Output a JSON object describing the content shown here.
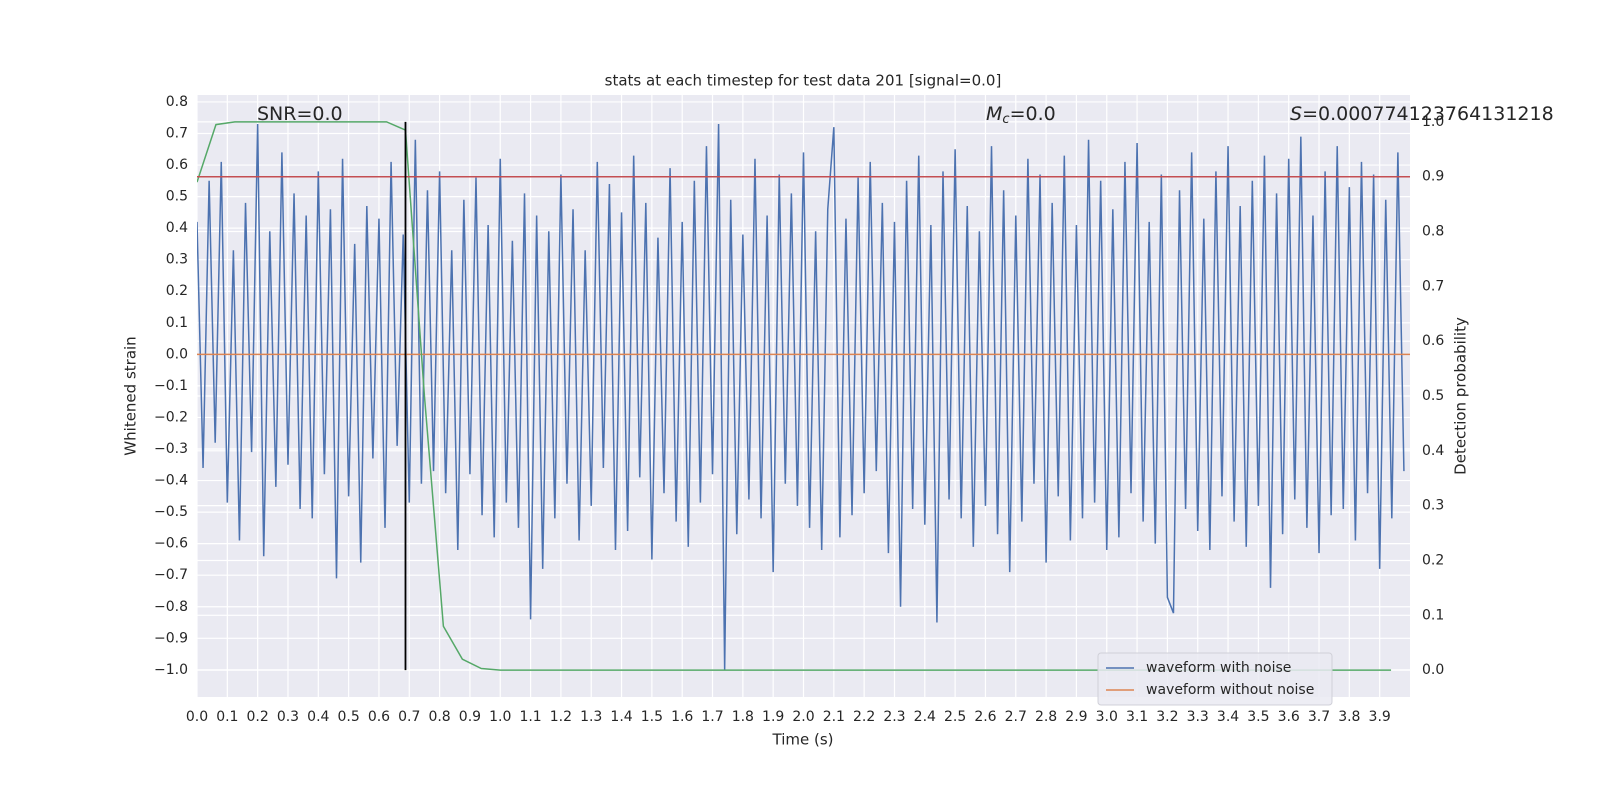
{
  "chart_data": {
    "type": "line",
    "title": "stats at each timestep for test data 201 [signal=0.0]",
    "xlabel": "Time (s)",
    "ylabel": "Whitened strain",
    "y2label": "Detection probability",
    "annotations": [
      {
        "text": "SNR=0.0"
      },
      {
        "symbol": "M",
        "subscript": "c",
        "text": "=0.0"
      },
      {
        "symbol": "S",
        "text": "=0.000774123764131218"
      }
    ],
    "xlim": [
      0,
      4.0
    ],
    "ylim": [
      -1.086,
      0.822
    ],
    "y2lim": [
      -0.049,
      1.049
    ],
    "xticks": [
      {
        "value": 0,
        "label": "0.0"
      },
      {
        "value": 0.1,
        "label": "0.1"
      },
      {
        "value": 0.2,
        "label": "0.2"
      },
      {
        "value": 0.3,
        "label": "0.3"
      },
      {
        "value": 0.4,
        "label": "0.4"
      },
      {
        "value": 0.5,
        "label": "0.5"
      },
      {
        "value": 0.6,
        "label": "0.6"
      },
      {
        "value": 0.7,
        "label": "0.7"
      },
      {
        "value": 0.8,
        "label": "0.8"
      },
      {
        "value": 0.9,
        "label": "0.9"
      },
      {
        "value": 1,
        "label": "1.0"
      },
      {
        "value": 1.1,
        "label": "1.1"
      },
      {
        "value": 1.2,
        "label": "1.2"
      },
      {
        "value": 1.3,
        "label": "1.3"
      },
      {
        "value": 1.4,
        "label": "1.4"
      },
      {
        "value": 1.5,
        "label": "1.5"
      },
      {
        "value": 1.6,
        "label": "1.6"
      },
      {
        "value": 1.7,
        "label": "1.7"
      },
      {
        "value": 1.8,
        "label": "1.8"
      },
      {
        "value": 1.9,
        "label": "1.9"
      },
      {
        "value": 2,
        "label": "2.0"
      },
      {
        "value": 2.1,
        "label": "2.1"
      },
      {
        "value": 2.2,
        "label": "2.2"
      },
      {
        "value": 2.3,
        "label": "2.3"
      },
      {
        "value": 2.4,
        "label": "2.4"
      },
      {
        "value": 2.5,
        "label": "2.5"
      },
      {
        "value": 2.6,
        "label": "2.6"
      },
      {
        "value": 2.7,
        "label": "2.7"
      },
      {
        "value": 2.8,
        "label": "2.8"
      },
      {
        "value": 2.9,
        "label": "2.9"
      },
      {
        "value": 3,
        "label": "3.0"
      },
      {
        "value": 3.1,
        "label": "3.1"
      },
      {
        "value": 3.2,
        "label": "3.2"
      },
      {
        "value": 3.3,
        "label": "3.3"
      },
      {
        "value": 3.4,
        "label": "3.4"
      },
      {
        "value": 3.5,
        "label": "3.5"
      },
      {
        "value": 3.6,
        "label": "3.6"
      },
      {
        "value": 3.7,
        "label": "3.7"
      },
      {
        "value": 3.8,
        "label": "3.8"
      },
      {
        "value": 3.9,
        "label": "3.9"
      }
    ],
    "yticks": [
      {
        "value": 0.8,
        "label": "0.8"
      },
      {
        "value": 0.7,
        "label": "0.7"
      },
      {
        "value": 0.6,
        "label": "0.6"
      },
      {
        "value": 0.5,
        "label": "0.5"
      },
      {
        "value": 0.4,
        "label": "0.4"
      },
      {
        "value": 0.3,
        "label": "0.3"
      },
      {
        "value": 0.2,
        "label": "0.2"
      },
      {
        "value": 0.1,
        "label": "0.1"
      },
      {
        "value": 0,
        "label": "0.0"
      },
      {
        "value": -0.1,
        "label": "−0.1"
      },
      {
        "value": -0.2,
        "label": "−0.2"
      },
      {
        "value": -0.3,
        "label": "−0.3"
      },
      {
        "value": -0.4,
        "label": "−0.4"
      },
      {
        "value": -0.5,
        "label": "−0.5"
      },
      {
        "value": -0.6,
        "label": "−0.6"
      },
      {
        "value": -0.7,
        "label": "−0.7"
      },
      {
        "value": -0.8,
        "label": "−0.8"
      },
      {
        "value": -0.9,
        "label": "−0.9"
      },
      {
        "value": -1,
        "label": "−1.0"
      }
    ],
    "y2ticks": [
      {
        "value": 0,
        "label": "0.0"
      },
      {
        "value": 0.1,
        "label": "0.1"
      },
      {
        "value": 0.2,
        "label": "0.2"
      },
      {
        "value": 0.3,
        "label": "0.3"
      },
      {
        "value": 0.4,
        "label": "0.4"
      },
      {
        "value": 0.5,
        "label": "0.5"
      },
      {
        "value": 0.6,
        "label": "0.6"
      },
      {
        "value": 0.7,
        "label": "0.7"
      },
      {
        "value": 0.8,
        "label": "0.8"
      },
      {
        "value": 0.9,
        "label": "0.9"
      },
      {
        "value": 1,
        "label": "1.0"
      }
    ],
    "grid": true,
    "legend": "lower right",
    "series": [
      {
        "name": "waveform with noise",
        "color": "#4c72b0",
        "x": [
          0,
          0.02,
          0.04,
          0.06,
          0.08,
          0.1,
          0.12,
          0.14,
          0.16,
          0.18,
          0.2,
          0.22,
          0.24,
          0.26,
          0.28,
          0.3,
          0.32,
          0.34,
          0.36,
          0.38,
          0.4,
          0.42,
          0.44,
          0.46,
          0.48,
          0.5,
          0.52,
          0.54,
          0.56,
          0.58,
          0.6,
          0.62,
          0.64,
          0.66,
          0.68,
          0.7,
          0.72,
          0.74,
          0.76,
          0.78,
          0.8,
          0.82,
          0.84,
          0.86,
          0.88,
          0.9,
          0.92,
          0.94,
          0.96,
          0.98,
          1,
          1.02,
          1.04,
          1.06,
          1.08,
          1.1,
          1.12,
          1.14,
          1.16,
          1.18,
          1.2,
          1.22,
          1.24,
          1.26,
          1.28,
          1.3,
          1.32,
          1.34,
          1.36,
          1.38,
          1.4,
          1.42,
          1.44,
          1.46,
          1.48,
          1.5,
          1.52,
          1.54,
          1.56,
          1.58,
          1.6,
          1.62,
          1.64,
          1.66,
          1.68,
          1.7,
          1.72,
          1.74,
          1.76,
          1.78,
          1.8,
          1.82,
          1.84,
          1.86,
          1.88,
          1.9,
          1.92,
          1.94,
          1.96,
          1.98,
          2,
          2.02,
          2.04,
          2.06,
          2.08,
          2.1,
          2.12,
          2.14,
          2.16,
          2.18,
          2.2,
          2.22,
          2.24,
          2.26,
          2.28,
          2.3,
          2.32,
          2.34,
          2.36,
          2.38,
          2.4,
          2.42,
          2.44,
          2.46,
          2.48,
          2.5,
          2.52,
          2.54,
          2.56,
          2.58,
          2.6,
          2.62,
          2.64,
          2.66,
          2.68,
          2.7,
          2.72,
          2.74,
          2.76,
          2.78,
          2.8,
          2.82,
          2.84,
          2.86,
          2.88,
          2.9,
          2.92,
          2.94,
          2.96,
          2.98,
          3,
          3.02,
          3.04,
          3.06,
          3.08,
          3.1,
          3.12,
          3.14,
          3.16,
          3.18,
          3.2,
          3.22,
          3.24,
          3.26,
          3.28,
          3.3,
          3.32,
          3.34,
          3.36,
          3.38,
          3.4,
          3.42,
          3.44,
          3.46,
          3.48,
          3.5,
          3.52,
          3.54,
          3.56,
          3.58,
          3.6,
          3.62,
          3.64,
          3.66,
          3.68,
          3.7,
          3.72,
          3.74,
          3.76,
          3.78,
          3.8,
          3.82,
          3.84,
          3.86,
          3.88,
          3.9,
          3.92,
          3.94,
          3.96,
          3.98
        ],
        "values": [
          0.42,
          -0.36,
          0.55,
          -0.28,
          0.61,
          -0.47,
          0.33,
          -0.59,
          0.48,
          -0.31,
          0.73,
          -0.64,
          0.39,
          -0.42,
          0.64,
          -0.35,
          0.51,
          -0.49,
          0.44,
          -0.52,
          0.58,
          -0.38,
          0.46,
          -0.71,
          0.62,
          -0.45,
          0.35,
          -0.66,
          0.47,
          -0.33,
          0.43,
          -0.55,
          0.61,
          -0.29,
          0.38,
          -0.47,
          0.68,
          -0.41,
          0.52,
          -0.37,
          0.58,
          -0.44,
          0.33,
          -0.62,
          0.49,
          -0.38,
          0.56,
          -0.51,
          0.41,
          -0.58,
          0.62,
          -0.47,
          0.36,
          -0.55,
          0.51,
          -0.84,
          0.44,
          -0.68,
          0.39,
          -0.52,
          0.57,
          -0.41,
          0.46,
          -0.59,
          0.33,
          -0.48,
          0.61,
          -0.36,
          0.54,
          -0.62,
          0.45,
          -0.56,
          0.63,
          -0.39,
          0.48,
          -0.65,
          0.37,
          -0.44,
          0.59,
          -0.53,
          0.42,
          -0.61,
          0.55,
          -0.47,
          0.66,
          -0.38,
          0.73,
          -1.0,
          0.49,
          -0.57,
          0.38,
          -0.46,
          0.62,
          -0.52,
          0.44,
          -0.69,
          0.57,
          -0.41,
          0.51,
          -0.48,
          0.64,
          -0.55,
          0.39,
          -0.62,
          0.46,
          0.72,
          -0.58,
          0.43,
          -0.51,
          0.56,
          -0.44,
          0.61,
          -0.37,
          0.48,
          -0.63,
          0.42,
          -0.8,
          0.55,
          -0.49,
          0.63,
          -0.54,
          0.41,
          -0.85,
          0.58,
          -0.46,
          0.65,
          -0.52,
          0.47,
          -0.61,
          0.39,
          -0.48,
          0.66,
          -0.57,
          0.52,
          -0.69,
          0.44,
          -0.53,
          0.62,
          -0.41,
          0.57,
          -0.66,
          0.48,
          -0.45,
          0.63,
          -0.59,
          0.41,
          -0.52,
          0.68,
          -0.47,
          0.55,
          -0.62,
          0.46,
          -0.58,
          0.61,
          -0.44,
          0.67,
          -0.53,
          0.42,
          -0.6,
          0.57,
          -0.77,
          -0.82,
          0.52,
          -0.49,
          0.64,
          -0.56,
          0.43,
          -0.62,
          0.58,
          -0.45,
          0.66,
          -0.53,
          0.47,
          -0.61,
          0.55,
          -0.48,
          0.63,
          -0.74,
          0.51,
          -0.57,
          0.62,
          -0.46,
          0.69,
          -0.55,
          0.44,
          -0.63,
          0.58,
          -0.51,
          0.66,
          -0.49,
          0.53,
          -0.59,
          0.61,
          -0.44,
          0.57,
          -0.68,
          0.49,
          -0.52,
          0.64,
          -0.37
        ]
      },
      {
        "name": "waveform without noise",
        "color": "#dd8452",
        "x": [
          0,
          4.0
        ],
        "values": [
          0,
          0
        ]
      },
      {
        "color": "#55a868",
        "axis": "y2",
        "x": [
          0,
          0.0625,
          0.125,
          0.1875,
          0.25,
          0.3125,
          0.375,
          0.4375,
          0.5,
          0.5625,
          0.625,
          0.6875,
          0.75,
          0.8125,
          0.875,
          0.9375,
          1,
          1.0625,
          1.125,
          1.1875,
          1.25,
          1.3125,
          1.375,
          1.4375,
          1.5,
          1.5625,
          1.625,
          1.6875,
          1.75,
          1.8125,
          1.875,
          1.9375,
          2,
          2.0625,
          2.125,
          2.1875,
          2.25,
          2.3125,
          2.375,
          2.4375,
          2.5,
          2.5625,
          2.625,
          2.6875,
          2.75,
          2.8125,
          2.875,
          2.9375,
          3,
          3.0625,
          3.125,
          3.1875,
          3.25,
          3.3125,
          3.375,
          3.4375,
          3.5,
          3.5625,
          3.625,
          3.6875,
          3.75,
          3.8125,
          3.875,
          3.9375
        ],
        "values": [
          0.89,
          0.995,
          1,
          1,
          1,
          1,
          1,
          1,
          1,
          1,
          1,
          0.985,
          0.5,
          0.08,
          0.02,
          0.003,
          0,
          0,
          0,
          0,
          0,
          0,
          0,
          0,
          0,
          0,
          0,
          0,
          0,
          0,
          0,
          0,
          0,
          0,
          0,
          0,
          0,
          0,
          0,
          0,
          0,
          0,
          0,
          0,
          0,
          0,
          0,
          0,
          0,
          0,
          0,
          0,
          0,
          0,
          0,
          0,
          0,
          0,
          0,
          0,
          0,
          0,
          0,
          0
        ]
      }
    ],
    "hlines": [
      {
        "y": 0.9,
        "axis": "y2",
        "color": "#c44e52"
      }
    ],
    "vlines": [
      {
        "x": 0.6875,
        "ymin": 0,
        "ymax": 1,
        "axis": "y2",
        "color": "#000000"
      }
    ]
  }
}
